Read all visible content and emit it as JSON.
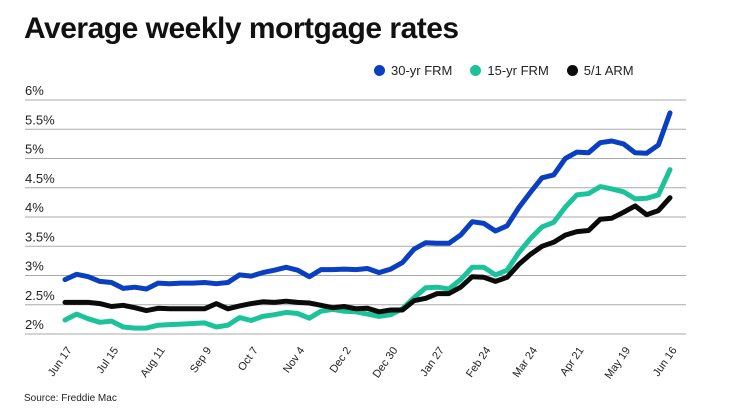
{
  "chart_data": {
    "type": "line",
    "title": "Average weekly mortgage rates",
    "source": "Source: Freddie Mac",
    "xlabel": "",
    "ylabel": "",
    "ylim": [
      2,
      6
    ],
    "y_ticks": [
      "2%",
      "2.5%",
      "3%",
      "3.5%",
      "4%",
      "4.5%",
      "5%",
      "5.5%",
      "6%"
    ],
    "y_tick_values": [
      2,
      2.5,
      3,
      3.5,
      4,
      4.5,
      5,
      5.5,
      6
    ],
    "x_tick_labels": [
      "Jun 17",
      "Jul 15",
      "Aug 11",
      "Sep 9",
      "Oct 7",
      "Nov 4",
      "Dec 2",
      "Dec 30",
      "Jan 27",
      "Feb 24",
      "Mar 24",
      "Apr 21",
      "May 19",
      "Jun 16"
    ],
    "x_tick_every_weeks": 4,
    "grid": "horizontal",
    "legend_placement": "top-right",
    "series": [
      {
        "name": "30-yr FRM",
        "color": "#0a3fc2",
        "values": [
          2.93,
          3.02,
          2.98,
          2.9,
          2.88,
          2.78,
          2.8,
          2.77,
          2.87,
          2.86,
          2.87,
          2.87,
          2.88,
          2.86,
          2.88,
          3.01,
          2.99,
          3.05,
          3.09,
          3.14,
          3.09,
          2.98,
          3.1,
          3.1,
          3.11,
          3.1,
          3.12,
          3.05,
          3.11,
          3.22,
          3.45,
          3.56,
          3.55,
          3.55,
          3.69,
          3.92,
          3.89,
          3.76,
          3.85,
          4.16,
          4.42,
          4.67,
          4.72,
          5.0,
          5.11,
          5.1,
          5.27,
          5.3,
          5.25,
          5.1,
          5.09,
          5.23,
          5.78
        ]
      },
      {
        "name": "15-yr FRM",
        "color": "#1cc39a",
        "values": [
          2.24,
          2.34,
          2.26,
          2.2,
          2.22,
          2.12,
          2.1,
          2.1,
          2.15,
          2.16,
          2.17,
          2.18,
          2.19,
          2.12,
          2.15,
          2.28,
          2.23,
          2.3,
          2.33,
          2.37,
          2.35,
          2.27,
          2.39,
          2.42,
          2.39,
          2.38,
          2.34,
          2.3,
          2.33,
          2.43,
          2.62,
          2.79,
          2.8,
          2.77,
          2.93,
          3.14,
          3.14,
          3.01,
          3.09,
          3.39,
          3.63,
          3.83,
          3.91,
          4.17,
          4.38,
          4.4,
          4.52,
          4.48,
          4.43,
          4.31,
          4.32,
          4.38,
          4.81
        ]
      },
      {
        "name": "5/1 ARM",
        "color": "#0b0b0b",
        "values": [
          2.54,
          2.54,
          2.54,
          2.52,
          2.47,
          2.49,
          2.45,
          2.4,
          2.44,
          2.43,
          2.43,
          2.43,
          2.43,
          2.52,
          2.43,
          2.48,
          2.52,
          2.55,
          2.54,
          2.56,
          2.54,
          2.53,
          2.49,
          2.45,
          2.47,
          2.43,
          2.44,
          2.38,
          2.41,
          2.41,
          2.57,
          2.61,
          2.69,
          2.69,
          2.8,
          2.98,
          2.97,
          2.9,
          2.97,
          3.19,
          3.36,
          3.5,
          3.57,
          3.69,
          3.75,
          3.77,
          3.96,
          3.98,
          4.08,
          4.19,
          4.04,
          4.11,
          4.33
        ]
      }
    ]
  }
}
